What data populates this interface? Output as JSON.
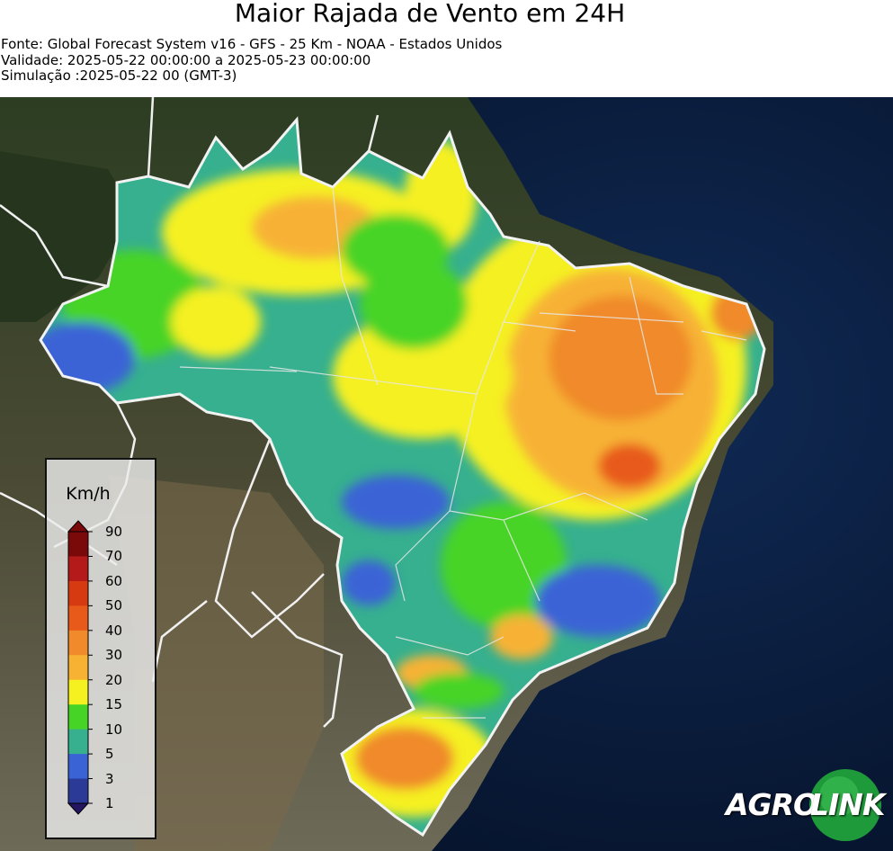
{
  "title": "Maior Rajada de Vento em 24H",
  "source_line": "Fonte: Global Forecast System v16 - GFS - 25 Km - NOAA - Estados Unidos",
  "validity_line": "Validade: 2025-05-22 00:00:00 a 2025-05-23 00:00:00",
  "simulation_line": "Simulação :2025-05-22 00 (GMT-3)",
  "legend": {
    "unit": "Km/h",
    "ticks": [
      "90",
      "70",
      "60",
      "50",
      "40",
      "30",
      "20",
      "15",
      "10",
      "5",
      "3",
      "1"
    ],
    "colors": [
      "#7a0a0a",
      "#b51a1a",
      "#d63a10",
      "#e85a1a",
      "#f08a2a",
      "#f7b234",
      "#f5f020",
      "#46d426",
      "#36b08e",
      "#3a64d6",
      "#2a3a96",
      "#241660"
    ]
  },
  "logo": {
    "part1": "AGRO",
    "part2": "LINK"
  },
  "colors": {
    "ocean": "#0a1a3a",
    "land": "#3d4a30",
    "border": "#f0f0f0"
  }
}
